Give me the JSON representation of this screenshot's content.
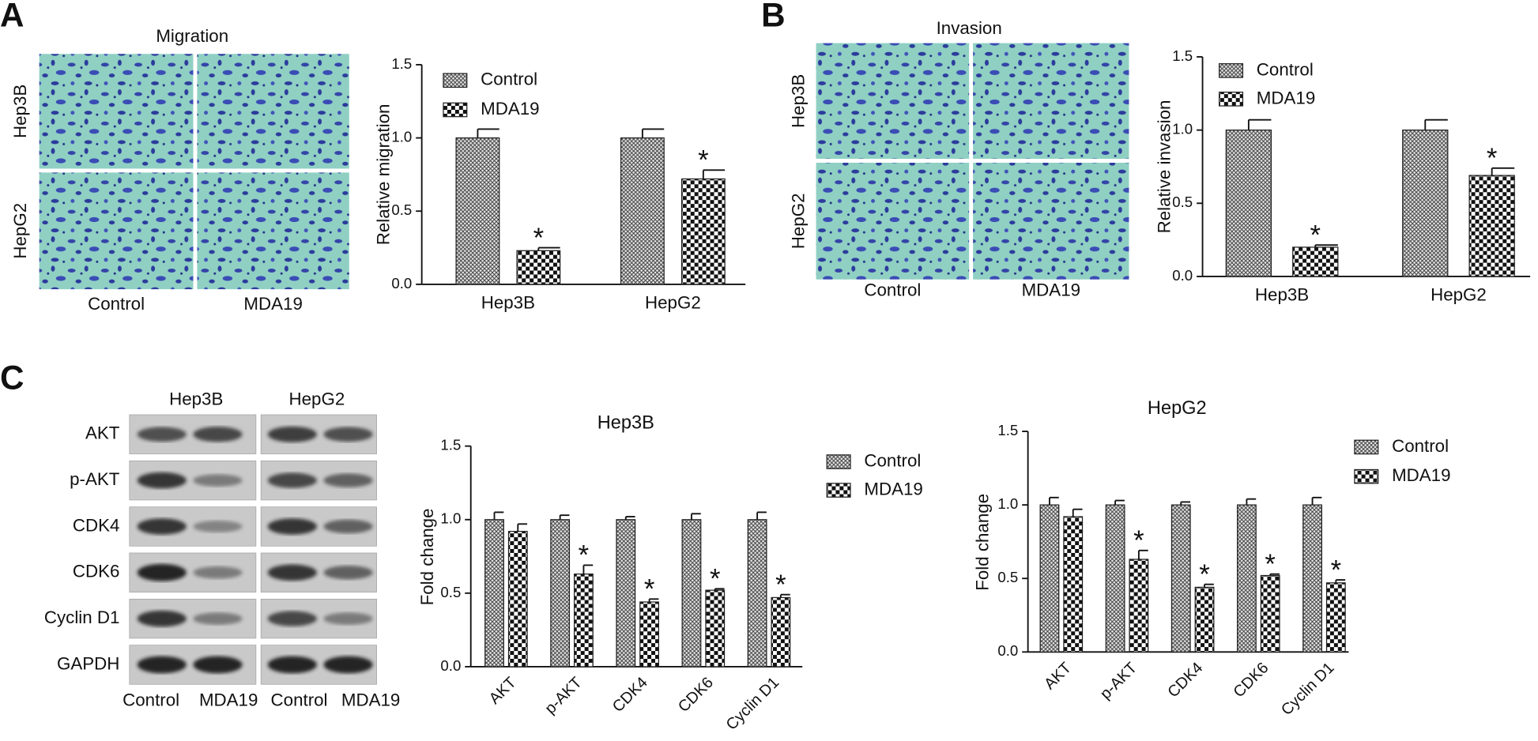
{
  "panel_labels": [
    "A",
    "B",
    "C"
  ],
  "micrographs": [
    {
      "title": "Migration",
      "rows": [
        "Hep3B",
        "HepG2"
      ],
      "columns": [
        "Control",
        "MDA19"
      ]
    },
    {
      "title": "Invasion",
      "rows": [
        "Hep3B",
        "HepG2"
      ],
      "columns": [
        "Control",
        "MDA19"
      ]
    }
  ],
  "blot": {
    "cell_lines": [
      "Hep3B",
      "HepG2"
    ],
    "proteins": [
      "AKT",
      "p-AKT",
      "CDK4",
      "CDK6",
      "Cyclin D1",
      "GAPDH"
    ],
    "lanes": [
      "Control",
      "MDA19",
      "Control",
      "MDA19"
    ]
  },
  "chart_data": [
    {
      "type": "bar",
      "y_label": "Relative migration",
      "categories": [
        "Hep3B",
        "HepG2"
      ],
      "series": [
        {
          "name": "Control",
          "pattern": "crosshatch",
          "values": [
            1.0,
            1.0
          ],
          "errors": [
            0.06,
            0.06
          ],
          "annotations": [
            null,
            null
          ]
        },
        {
          "name": "MDA19",
          "pattern": "checker",
          "values": [
            0.23,
            0.72
          ],
          "errors": [
            0.02,
            0.06
          ],
          "annotations": [
            "*",
            "*"
          ]
        }
      ],
      "ylim": [
        0,
        1.5
      ],
      "yticks": [
        {
          "value": 0,
          "label": "0.0"
        },
        0.5,
        {
          "value": 1,
          "label": "1.0"
        },
        1.5
      ]
    },
    {
      "type": "bar",
      "y_label": "Relative invasion",
      "categories": [
        "Hep3B",
        "HepG2"
      ],
      "series": [
        {
          "name": "Control",
          "pattern": "crosshatch",
          "values": [
            1.0,
            1.0
          ],
          "errors": [
            0.07,
            0.07
          ],
          "annotations": [
            null,
            null
          ]
        },
        {
          "name": "MDA19",
          "pattern": "checker",
          "values": [
            0.2,
            0.69
          ],
          "errors": [
            0.015,
            0.05
          ],
          "annotations": [
            "*",
            "*"
          ]
        }
      ],
      "ylim": [
        0,
        1.5
      ],
      "yticks": [
        {
          "value": 0,
          "label": "0.0"
        },
        0.5,
        {
          "value": 1,
          "label": "1.0"
        },
        1.5
      ]
    },
    {
      "type": "bar",
      "title": "Hep3B",
      "y_label": "Fold change",
      "categories": [
        "AKT",
        "p-AKT",
        "CDK4",
        "CDK6",
        "Cyclin D1"
      ],
      "series": [
        {
          "name": "Control",
          "pattern": "crosshatch",
          "values": [
            1.0,
            1.0,
            1.0,
            1.0,
            1.0
          ],
          "errors": [
            0.05,
            0.03,
            0.02,
            0.04,
            0.05
          ],
          "annotations": [
            null,
            null,
            null,
            null,
            null
          ]
        },
        {
          "name": "MDA19",
          "pattern": "checker",
          "values": [
            0.92,
            0.63,
            0.44,
            0.52,
            0.47
          ],
          "errors": [
            0.05,
            0.06,
            0.02,
            0.01,
            0.02
          ],
          "annotations": [
            null,
            "*",
            "*",
            "*",
            "*"
          ]
        }
      ],
      "ylim": [
        0,
        1.5
      ],
      "yticks": [
        {
          "value": 0,
          "label": "0.0"
        },
        0.5,
        {
          "value": 1,
          "label": "1.0"
        },
        1.5
      ]
    },
    {
      "type": "bar",
      "title": "HepG2",
      "y_label": "Fold change",
      "categories": [
        "AKT",
        "p-AKT",
        "CDK4",
        "CDK6",
        "Cyclin D1"
      ],
      "series": [
        {
          "name": "Control",
          "pattern": "crosshatch",
          "values": [
            1.0,
            1.0,
            1.0,
            1.0,
            1.0
          ],
          "errors": [
            0.05,
            0.03,
            0.02,
            0.04,
            0.05
          ],
          "annotations": [
            null,
            null,
            null,
            null,
            null
          ]
        },
        {
          "name": "MDA19",
          "pattern": "checker",
          "values": [
            0.92,
            0.63,
            0.44,
            0.52,
            0.47
          ],
          "errors": [
            0.05,
            0.06,
            0.02,
            0.01,
            0.02
          ],
          "annotations": [
            null,
            "*",
            "*",
            "*",
            "*"
          ]
        }
      ],
      "ylim": [
        0,
        1.5
      ],
      "yticks": [
        {
          "value": 0,
          "label": "0.0"
        },
        0.5,
        {
          "value": 1,
          "label": "1.0"
        },
        1.5
      ]
    }
  ]
}
